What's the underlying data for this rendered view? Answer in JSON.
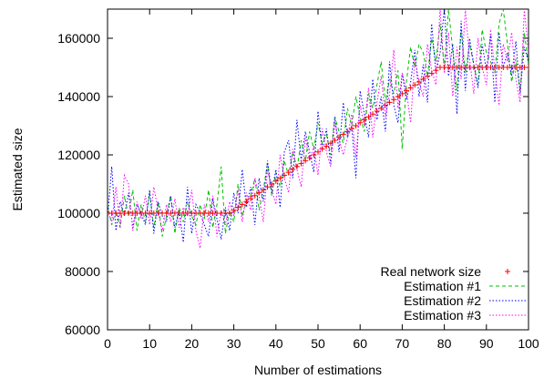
{
  "chart_data": {
    "type": "line",
    "xlabel": "Number of estimations",
    "ylabel": "Estimated size",
    "xlim": [
      0,
      100
    ],
    "ylim": [
      60000,
      170000
    ],
    "xticks": [
      0,
      10,
      20,
      30,
      40,
      50,
      60,
      70,
      80,
      90,
      100
    ],
    "yticks": [
      60000,
      80000,
      100000,
      120000,
      140000,
      160000
    ],
    "legend_position": "bottom-right",
    "grid": false,
    "series": [
      {
        "name": "Real network size",
        "style": "points-plus",
        "color": "#ff0000",
        "x": [
          0,
          1,
          2,
          3,
          4,
          5,
          6,
          7,
          8,
          9,
          10,
          11,
          12,
          13,
          14,
          15,
          16,
          17,
          18,
          19,
          20,
          21,
          22,
          23,
          24,
          25,
          26,
          27,
          28,
          29,
          30,
          31,
          32,
          33,
          34,
          35,
          36,
          37,
          38,
          39,
          40,
          41,
          42,
          43,
          44,
          45,
          46,
          47,
          48,
          49,
          50,
          51,
          52,
          53,
          54,
          55,
          56,
          57,
          58,
          59,
          60,
          61,
          62,
          63,
          64,
          65,
          66,
          67,
          68,
          69,
          70,
          71,
          72,
          73,
          74,
          75,
          76,
          77,
          78,
          79,
          80,
          81,
          82,
          83,
          84,
          85,
          86,
          87,
          88,
          89,
          90,
          91,
          92,
          93,
          94,
          95,
          96,
          97,
          98,
          99,
          100
        ],
        "y": [
          100000,
          100000,
          100000,
          100000,
          100000,
          100000,
          100000,
          100000,
          100000,
          100000,
          100000,
          100000,
          100000,
          100000,
          100000,
          100000,
          100000,
          100000,
          100000,
          100000,
          100000,
          100000,
          100000,
          100000,
          100000,
          100000,
          100000,
          100000,
          100000,
          100000,
          101000,
          102000,
          103000,
          104000,
          105000,
          106000,
          107000,
          108000,
          109000,
          110000,
          111000,
          112000,
          113000,
          114000,
          115000,
          116000,
          117000,
          118000,
          119000,
          120000,
          121000,
          122000,
          123000,
          124000,
          125000,
          126000,
          127000,
          128000,
          129000,
          130000,
          131000,
          132000,
          133000,
          134000,
          135000,
          136000,
          137000,
          138000,
          139000,
          140000,
          141000,
          142000,
          143000,
          144000,
          145000,
          146000,
          147000,
          148000,
          149000,
          150000,
          150000,
          150000,
          150000,
          150000,
          150000,
          150000,
          150000,
          150000,
          150000,
          150000,
          150000,
          150000,
          150000,
          150000,
          150000,
          150000,
          150000,
          150000,
          150000,
          150000,
          150000
        ]
      },
      {
        "name": "Estimation #1",
        "style": "dashed",
        "color": "#00c000",
        "x": [
          0,
          1,
          2,
          3,
          4,
          5,
          6,
          7,
          8,
          9,
          10,
          11,
          12,
          13,
          14,
          15,
          16,
          17,
          18,
          19,
          20,
          21,
          22,
          23,
          24,
          25,
          26,
          27,
          28,
          29,
          30,
          31,
          32,
          33,
          34,
          35,
          36,
          37,
          38,
          39,
          40,
          41,
          42,
          43,
          44,
          45,
          46,
          47,
          48,
          49,
          50,
          51,
          52,
          53,
          54,
          55,
          56,
          57,
          58,
          59,
          60,
          61,
          62,
          63,
          64,
          65,
          66,
          67,
          68,
          69,
          70,
          71,
          72,
          73,
          74,
          75,
          76,
          77,
          78,
          79,
          80,
          81,
          82,
          83,
          84,
          85,
          86,
          87,
          88,
          89,
          90,
          91,
          92,
          93,
          94,
          95,
          96,
          97,
          98,
          99,
          100
        ],
        "y": [
          103000,
          96000,
          101000,
          95000,
          106000,
          99000,
          108000,
          94000,
          103000,
          97000,
          107000,
          95000,
          104000,
          92000,
          99000,
          106000,
          93000,
          102000,
          97000,
          104000,
          99000,
          96000,
          103000,
          98000,
          108000,
          95000,
          103000,
          116000,
          93000,
          101000,
          97000,
          110000,
          99000,
          104000,
          106000,
          112000,
          101000,
          108000,
          117000,
          106000,
          114000,
          109000,
          118000,
          113000,
          121000,
          115000,
          125000,
          118000,
          128000,
          122000,
          131000,
          124000,
          127000,
          120000,
          133000,
          128000,
          124000,
          136000,
          130000,
          140000,
          133000,
          128000,
          141000,
          136000,
          144000,
          152000,
          138000,
          146000,
          141000,
          149000,
          122000,
          145000,
          157000,
          150000,
          158000,
          155000,
          147000,
          160000,
          152000,
          165000,
          150000,
          170000,
          156000,
          142000,
          163000,
          148000,
          158000,
          151000,
          144000,
          163000,
          155000,
          152000,
          148000,
          165000,
          170000,
          158000,
          145000,
          153000,
          142000,
          162000,
          151000
        ]
      },
      {
        "name": "Estimation #2",
        "style": "dotted",
        "color": "#0000ff",
        "x": [
          0,
          1,
          2,
          3,
          4,
          5,
          6,
          7,
          8,
          9,
          10,
          11,
          12,
          13,
          14,
          15,
          16,
          17,
          18,
          19,
          20,
          21,
          22,
          23,
          24,
          25,
          26,
          27,
          28,
          29,
          30,
          31,
          32,
          33,
          34,
          35,
          36,
          37,
          38,
          39,
          40,
          41,
          42,
          43,
          44,
          45,
          46,
          47,
          48,
          49,
          50,
          51,
          52,
          53,
          54,
          55,
          56,
          57,
          58,
          59,
          60,
          61,
          62,
          63,
          64,
          65,
          66,
          67,
          68,
          69,
          70,
          71,
          72,
          73,
          74,
          75,
          76,
          77,
          78,
          79,
          80,
          81,
          82,
          83,
          84,
          85,
          86,
          87,
          88,
          89,
          90,
          91,
          92,
          93,
          94,
          95,
          96,
          97,
          98,
          99,
          100
        ],
        "y": [
          98000,
          116000,
          94000,
          104000,
          99000,
          107000,
          95000,
          103000,
          100000,
          96000,
          108000,
          93000,
          104000,
          99000,
          97000,
          106000,
          95000,
          101000,
          90000,
          109000,
          93000,
          103000,
          100000,
          96000,
          92000,
          105000,
          98000,
          91000,
          102000,
          94000,
          107000,
          100000,
          115000,
          102000,
          109000,
          96000,
          112000,
          104000,
          118000,
          107000,
          115000,
          102000,
          121000,
          125000,
          112000,
          132000,
          118000,
          128000,
          121000,
          114000,
          135000,
          122000,
          129000,
          117000,
          133000,
          121000,
          138000,
          126000,
          130000,
          112000,
          142000,
          134000,
          126000,
          146000,
          132000,
          140000,
          128000,
          152000,
          137000,
          131000,
          148000,
          139000,
          145000,
          156000,
          140000,
          151000,
          138000,
          165000,
          148000,
          155000,
          170000,
          147000,
          158000,
          134000,
          166000,
          142000,
          160000,
          151000,
          143000,
          158000,
          149000,
          161000,
          138000,
          162000,
          150000,
          155000,
          147000,
          159000,
          141000,
          157000,
          152000
        ]
      },
      {
        "name": "Estimation #3",
        "style": "dotted",
        "color": "#ff00ff",
        "x": [
          0,
          1,
          2,
          3,
          4,
          5,
          6,
          7,
          8,
          9,
          10,
          11,
          12,
          13,
          14,
          15,
          16,
          17,
          18,
          19,
          20,
          21,
          22,
          23,
          24,
          25,
          26,
          27,
          28,
          29,
          30,
          31,
          32,
          33,
          34,
          35,
          36,
          37,
          38,
          39,
          40,
          41,
          42,
          43,
          44,
          45,
          46,
          47,
          48,
          49,
          50,
          51,
          52,
          53,
          54,
          55,
          56,
          57,
          58,
          59,
          60,
          61,
          62,
          63,
          64,
          65,
          66,
          67,
          68,
          69,
          70,
          71,
          72,
          73,
          74,
          75,
          76,
          77,
          78,
          79,
          80,
          81,
          82,
          83,
          84,
          85,
          86,
          87,
          88,
          89,
          90,
          91,
          92,
          93,
          94,
          95,
          96,
          97,
          98,
          99,
          100
        ],
        "y": [
          101000,
          97000,
          109000,
          95000,
          113000,
          110000,
          94000,
          104000,
          98000,
          106000,
          96000,
          109000,
          101000,
          94000,
          103000,
          97000,
          105000,
          95000,
          102000,
          99000,
          108000,
          94000,
          88000,
          103000,
          97000,
          106000,
          92000,
          101000,
          96000,
          104000,
          99000,
          108000,
          97000,
          107000,
          101000,
          112000,
          106000,
          97000,
          115000,
          108000,
          103000,
          120000,
          112000,
          107000,
          122000,
          115000,
          109000,
          126000,
          118000,
          123000,
          113000,
          129000,
          121000,
          116000,
          131000,
          125000,
          120000,
          126000,
          134000,
          119000,
          137000,
          130000,
          143000,
          126000,
          138000,
          147000,
          133000,
          141000,
          156000,
          136000,
          148000,
          142000,
          131000,
          153000,
          145000,
          140000,
          158000,
          149000,
          144000,
          170000,
          148000,
          162000,
          140000,
          157000,
          146000,
          170000,
          153000,
          141000,
          160000,
          150000,
          144000,
          163000,
          149000,
          137000,
          158000,
          152000,
          162000,
          146000,
          138000,
          170000,
          155000
        ]
      }
    ]
  }
}
